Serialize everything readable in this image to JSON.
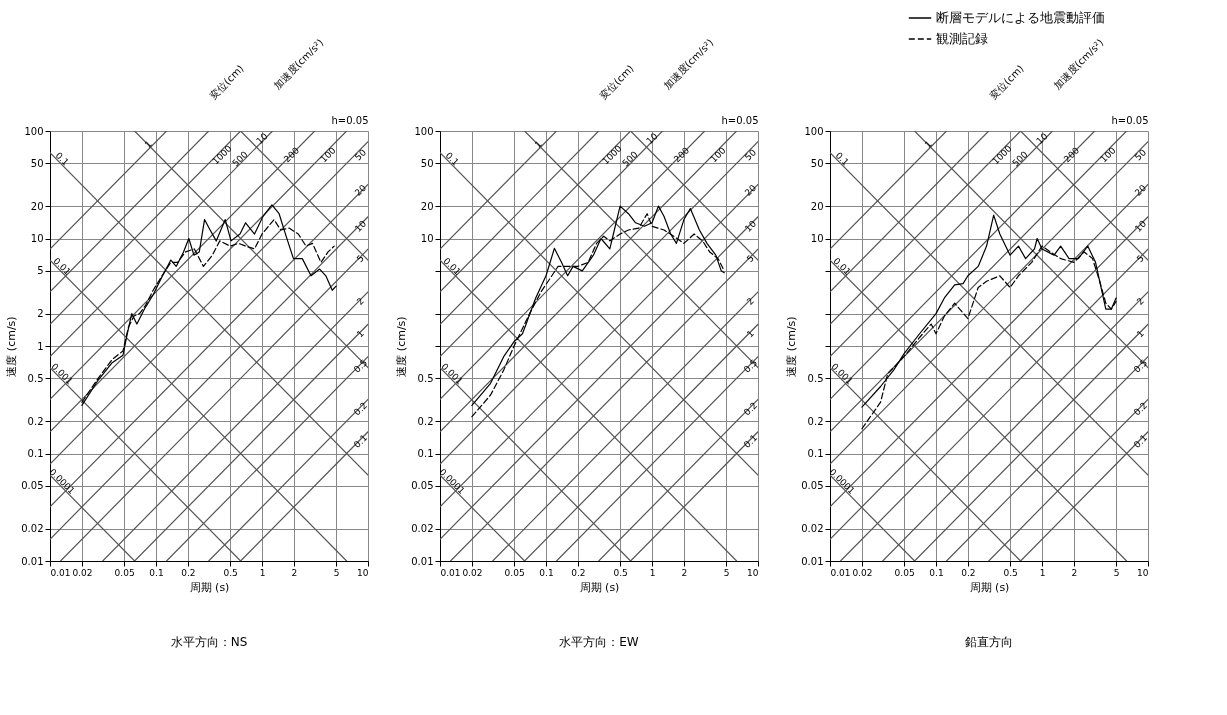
{
  "chart_data": [
    {
      "type": "line",
      "title": "水平方向：NS",
      "xlabel": "周期 (s)",
      "ylabel": "速度 (cm/s)",
      "log": "xy",
      "grid": true,
      "xlim": [
        0.01,
        10
      ],
      "ylim": [
        0.01,
        100
      ],
      "xticks": [
        0.01,
        0.02,
        0.05,
        0.1,
        0.2,
        0.5,
        1,
        2,
        5,
        10
      ],
      "yticks": [
        0.01,
        0.02,
        0.05,
        0.1,
        0.2,
        0.5,
        1,
        2,
        5,
        10,
        20,
        50,
        100
      ],
      "annotations": [
        "変位(cm)",
        "加速度(cm/s²)",
        "h=0.05",
        {
          "text": "0.1",
          "x": 0.013,
          "y": 55
        },
        {
          "text": "0.01",
          "x": 0.013,
          "y": 5.5
        },
        {
          "text": "0.001",
          "x": 0.013,
          "y": 0.55
        },
        {
          "text": "0.0001",
          "x": 0.013,
          "y": 0.055
        },
        {
          "text": "1",
          "x": 0.085,
          "y": 75
        },
        {
          "text": "1000",
          "x": 0.42,
          "y": 60
        },
        {
          "text": "500",
          "x": 0.62,
          "y": 55
        },
        {
          "text": "10",
          "x": 1.0,
          "y": 85
        },
        {
          "text": "200",
          "x": 1.9,
          "y": 60
        },
        {
          "text": "100",
          "x": 4.2,
          "y": 60
        },
        {
          "text": "50",
          "x": 8.5,
          "y": 60
        },
        {
          "text": "20",
          "x": 8.5,
          "y": 28
        },
        {
          "text": "10",
          "x": 8.5,
          "y": 13
        },
        {
          "text": "5",
          "x": 8.5,
          "y": 6.5
        },
        {
          "text": "2",
          "x": 8.5,
          "y": 2.6
        },
        {
          "text": "1",
          "x": 8.5,
          "y": 1.3
        },
        {
          "text": "0.5",
          "x": 8.5,
          "y": 0.65
        },
        {
          "text": "0.2",
          "x": 8.5,
          "y": 0.26
        },
        {
          "text": "0.1",
          "x": 8.5,
          "y": 0.13
        }
      ],
      "series": [
        {
          "color": "#000000",
          "line_style": "solid",
          "x": [
            0.02,
            0.0284,
            0.0386,
            0.0488,
            0.0527,
            0.059,
            0.066,
            0.0776,
            0.094,
            0.114,
            0.138,
            0.155,
            0.181,
            0.204,
            0.228,
            0.256,
            0.287,
            0.324,
            0.37,
            0.45,
            0.51,
            0.62,
            0.7,
            0.85,
            1.02,
            1.24,
            1.45,
            1.7,
            1.98,
            2.4,
            2.9,
            3.5,
            4.0,
            4.6,
            5.0
          ],
          "values": [
            0.28,
            0.48,
            0.7,
            0.82,
            1.2,
            2.0,
            1.6,
            2.2,
            3.0,
            4.4,
            6.3,
            5.5,
            7.4,
            10,
            7.0,
            7.5,
            15,
            12,
            9.5,
            15,
            9.5,
            11,
            14,
            11,
            16,
            20.5,
            17,
            10.3,
            6.5,
            6.5,
            4.5,
            5.2,
            4.5,
            3.3,
            3.6
          ]
        },
        {
          "color": "#000000",
          "line_style": "dashed",
          "x": [
            0.02,
            0.0284,
            0.0386,
            0.0488,
            0.055,
            0.062,
            0.07,
            0.08,
            0.094,
            0.114,
            0.138,
            0.16,
            0.19,
            0.23,
            0.28,
            0.34,
            0.4,
            0.5,
            0.6,
            0.7,
            0.85,
            1.0,
            1.3,
            1.5,
            1.8,
            2.2,
            2.6,
            3.0,
            3.6,
            4.2,
            4.8
          ],
          "values": [
            0.3,
            0.5,
            0.75,
            0.9,
            1.5,
            1.9,
            2.0,
            2.4,
            3.3,
            4.5,
            6.0,
            6.0,
            7.5,
            8.0,
            5.5,
            7.0,
            9.5,
            8.5,
            9.0,
            8.5,
            8.0,
            11,
            15,
            12,
            12.5,
            11,
            8.5,
            9.0,
            6.0,
            7.5,
            8.5
          ]
        },
        {
          "color": "#555555",
          "line_style": "solid",
          "x": [
            0.01,
            0.06283
          ],
          "values": [
            0.06283,
            0.01
          ]
        },
        {
          "color": "#555555",
          "line_style": "solid",
          "x": [
            0.01,
            0.6283
          ],
          "values": [
            0.6283,
            0.01
          ]
        },
        {
          "color": "#555555",
          "line_style": "solid",
          "x": [
            0.01,
            6.283
          ],
          "values": [
            6.283,
            0.01
          ]
        },
        {
          "color": "#555555",
          "line_style": "solid",
          "x": [
            0.01,
            10
          ],
          "values": [
            62.83,
            0.06283
          ]
        },
        {
          "color": "#555555",
          "line_style": "solid",
          "x": [
            0.06283,
            10
          ],
          "values": [
            100,
            0.6283
          ]
        },
        {
          "color": "#555555",
          "line_style": "solid",
          "x": [
            0.6283,
            10
          ],
          "values": [
            100,
            6.283
          ]
        },
        {
          "color": "#555555",
          "line_style": "solid",
          "x": [
            0.01,
            0.1257
          ],
          "values": [
            7.958,
            100
          ]
        },
        {
          "color": "#555555",
          "line_style": "solid",
          "x": [
            0.01,
            0.3142
          ],
          "values": [
            3.183,
            100
          ]
        },
        {
          "color": "#555555",
          "line_style": "solid",
          "x": [
            0.01,
            0.6283
          ],
          "values": [
            1.592,
            100
          ]
        },
        {
          "color": "#555555",
          "line_style": "solid",
          "x": [
            0.01,
            1.257
          ],
          "values": [
            0.7958,
            100
          ]
        },
        {
          "color": "#555555",
          "line_style": "solid",
          "x": [
            0.01,
            3.142
          ],
          "values": [
            0.3183,
            100
          ]
        },
        {
          "color": "#555555",
          "line_style": "solid",
          "x": [
            0.01,
            6.283
          ],
          "values": [
            0.1592,
            100
          ]
        },
        {
          "color": "#555555",
          "line_style": "solid",
          "x": [
            0.01,
            10
          ],
          "values": [
            0.07958,
            79.58
          ]
        },
        {
          "color": "#555555",
          "line_style": "solid",
          "x": [
            0.01,
            10
          ],
          "values": [
            0.03183,
            31.83
          ]
        },
        {
          "color": "#555555",
          "line_style": "solid",
          "x": [
            0.01,
            10
          ],
          "values": [
            0.01592,
            15.92
          ]
        },
        {
          "color": "#555555",
          "line_style": "solid",
          "x": [
            0.01257,
            10
          ],
          "values": [
            0.01,
            7.958
          ]
        },
        {
          "color": "#555555",
          "line_style": "solid",
          "x": [
            0.03142,
            10
          ],
          "values": [
            0.01,
            3.183
          ]
        },
        {
          "color": "#555555",
          "line_style": "solid",
          "x": [
            0.06283,
            10
          ],
          "values": [
            0.01,
            1.592
          ]
        },
        {
          "color": "#555555",
          "line_style": "solid",
          "x": [
            0.1257,
            10
          ],
          "values": [
            0.01,
            0.7958
          ]
        },
        {
          "color": "#555555",
          "line_style": "solid",
          "x": [
            0.3142,
            10
          ],
          "values": [
            0.01,
            0.3183
          ]
        },
        {
          "color": "#555555",
          "line_style": "solid",
          "x": [
            0.6283,
            10
          ],
          "values": [
            0.01,
            0.1592
          ]
        }
      ]
    },
    {
      "type": "line",
      "title": "水平方向：EW",
      "xlabel": "周期 (s)",
      "ylabel": "速度 (cm/s)",
      "log": "xy",
      "grid": true,
      "xlim": [
        0.01,
        10
      ],
      "ylim": [
        0.01,
        100
      ],
      "xticks": [
        0.01,
        0.02,
        0.05,
        0.1,
        0.2,
        0.5,
        1,
        2,
        5,
        10
      ],
      "yticks": [
        0.01,
        0.02,
        0.05,
        0.1,
        0.2,
        0.5,
        {
          "value": 1,
          "label": null
        },
        {
          "value": 2,
          "label": null
        },
        {
          "value": 5,
          "label": null
        },
        10,
        20,
        50,
        100
      ],
      "annotations": [
        "変位(cm)",
        "加速度(cm/s²)",
        "h=0.05",
        {
          "text": "0.1",
          "x": 0.013,
          "y": 55
        },
        {
          "text": "0.01",
          "x": 0.013,
          "y": 5.5
        },
        {
          "text": "0.001",
          "x": 0.013,
          "y": 0.55
        },
        {
          "text": "0.0001",
          "x": 0.013,
          "y": 0.055
        },
        {
          "text": "1",
          "x": 0.085,
          "y": 75
        },
        {
          "text": "1000",
          "x": 0.42,
          "y": 60
        },
        {
          "text": "500",
          "x": 0.62,
          "y": 55
        },
        {
          "text": "10",
          "x": 1.0,
          "y": 85
        },
        {
          "text": "200",
          "x": 1.9,
          "y": 60
        },
        {
          "text": "100",
          "x": 4.2,
          "y": 60
        },
        {
          "text": "50",
          "x": 8.5,
          "y": 60
        },
        {
          "text": "20",
          "x": 8.5,
          "y": 28
        },
        {
          "text": "10",
          "x": 8.5,
          "y": 13
        },
        {
          "text": "5",
          "x": 8.5,
          "y": 6.5
        },
        {
          "text": "2",
          "x": 8.5,
          "y": 2.6
        },
        {
          "text": "1",
          "x": 8.5,
          "y": 1.3
        },
        {
          "text": "0.5",
          "x": 8.5,
          "y": 0.65
        },
        {
          "text": "0.2",
          "x": 8.5,
          "y": 0.26
        },
        {
          "text": "0.1",
          "x": 8.5,
          "y": 0.13
        }
      ],
      "series": [
        {
          "color": "#000000",
          "line_style": "solid",
          "x": [
            0.02,
            0.03,
            0.04,
            0.05,
            0.06,
            0.08,
            0.1,
            0.12,
            0.14,
            0.16,
            0.18,
            0.22,
            0.28,
            0.33,
            0.4,
            0.45,
            0.5,
            0.6,
            0.7,
            0.85,
            1.0,
            1.15,
            1.3,
            1.5,
            1.7,
            2.0,
            2.3,
            2.8,
            3.3,
            4.0,
            4.5,
            4.8
          ],
          "values": [
            0.28,
            0.45,
            0.8,
            1.1,
            1.3,
            2.8,
            4.5,
            8.1,
            6.0,
            4.5,
            5.5,
            5.0,
            7.0,
            10,
            8.0,
            13,
            20,
            17,
            14,
            13,
            14,
            20,
            16,
            11,
            9.0,
            15,
            19,
            12,
            9.0,
            7.0,
            5.0,
            4.8
          ]
        },
        {
          "color": "#000000",
          "line_style": "dashed",
          "x": [
            0.02,
            0.03,
            0.04,
            0.05,
            0.07,
            0.09,
            0.11,
            0.13,
            0.16,
            0.2,
            0.25,
            0.3,
            0.35,
            0.4,
            0.5,
            0.6,
            0.75,
            0.9,
            1.0,
            1.3,
            1.6,
            2.0,
            2.5,
            3.0,
            3.5,
            4.2,
            4.8
          ],
          "values": [
            0.22,
            0.35,
            0.6,
            1.0,
            2.0,
            3.2,
            4.3,
            5.5,
            5.5,
            5.5,
            6.0,
            9.0,
            10.5,
            9.5,
            11,
            12,
            12.5,
            17,
            13,
            12,
            10.5,
            9.0,
            11,
            9.5,
            7.5,
            6.5,
            5.0
          ]
        },
        {
          "color": "#555555",
          "line_style": "solid",
          "x": [
            0.01,
            0.06283
          ],
          "values": [
            0.06283,
            0.01
          ]
        },
        {
          "color": "#555555",
          "line_style": "solid",
          "x": [
            0.01,
            0.6283
          ],
          "values": [
            0.6283,
            0.01
          ]
        },
        {
          "color": "#555555",
          "line_style": "solid",
          "x": [
            0.01,
            6.283
          ],
          "values": [
            6.283,
            0.01
          ]
        },
        {
          "color": "#555555",
          "line_style": "solid",
          "x": [
            0.01,
            10
          ],
          "values": [
            62.83,
            0.06283
          ]
        },
        {
          "color": "#555555",
          "line_style": "solid",
          "x": [
            0.06283,
            10
          ],
          "values": [
            100,
            0.6283
          ]
        },
        {
          "color": "#555555",
          "line_style": "solid",
          "x": [
            0.6283,
            10
          ],
          "values": [
            100,
            6.283
          ]
        },
        {
          "color": "#555555",
          "line_style": "solid",
          "x": [
            0.01,
            0.1257
          ],
          "values": [
            7.958,
            100
          ]
        },
        {
          "color": "#555555",
          "line_style": "solid",
          "x": [
            0.01,
            0.3142
          ],
          "values": [
            3.183,
            100
          ]
        },
        {
          "color": "#555555",
          "line_style": "solid",
          "x": [
            0.01,
            0.6283
          ],
          "values": [
            1.592,
            100
          ]
        },
        {
          "color": "#555555",
          "line_style": "solid",
          "x": [
            0.01,
            1.257
          ],
          "values": [
            0.7958,
            100
          ]
        },
        {
          "color": "#555555",
          "line_style": "solid",
          "x": [
            0.01,
            3.142
          ],
          "values": [
            0.3183,
            100
          ]
        },
        {
          "color": "#555555",
          "line_style": "solid",
          "x": [
            0.01,
            6.283
          ],
          "values": [
            0.1592,
            100
          ]
        },
        {
          "color": "#555555",
          "line_style": "solid",
          "x": [
            0.01,
            10
          ],
          "values": [
            0.07958,
            79.58
          ]
        },
        {
          "color": "#555555",
          "line_style": "solid",
          "x": [
            0.01,
            10
          ],
          "values": [
            0.03183,
            31.83
          ]
        },
        {
          "color": "#555555",
          "line_style": "solid",
          "x": [
            0.01,
            10
          ],
          "values": [
            0.01592,
            15.92
          ]
        },
        {
          "color": "#555555",
          "line_style": "solid",
          "x": [
            0.01257,
            10
          ],
          "values": [
            0.01,
            7.958
          ]
        },
        {
          "color": "#555555",
          "line_style": "solid",
          "x": [
            0.03142,
            10
          ],
          "values": [
            0.01,
            3.183
          ]
        },
        {
          "color": "#555555",
          "line_style": "solid",
          "x": [
            0.06283,
            10
          ],
          "values": [
            0.01,
            1.592
          ]
        },
        {
          "color": "#555555",
          "line_style": "solid",
          "x": [
            0.1257,
            10
          ],
          "values": [
            0.01,
            0.7958
          ]
        },
        {
          "color": "#555555",
          "line_style": "solid",
          "x": [
            0.3142,
            10
          ],
          "values": [
            0.01,
            0.3183
          ]
        },
        {
          "color": "#555555",
          "line_style": "solid",
          "x": [
            0.6283,
            10
          ],
          "values": [
            0.01,
            0.1592
          ]
        }
      ]
    },
    {
      "type": "line",
      "title": "鉛直方向",
      "xlabel": "周期 (s)",
      "ylabel": "速度 (cm/s)",
      "log": "xy",
      "grid": true,
      "legend": "top right",
      "xlim": [
        0.01,
        10
      ],
      "ylim": [
        0.01,
        100
      ],
      "xticks": [
        0.01,
        0.02,
        0.05,
        0.1,
        0.2,
        0.5,
        1,
        2,
        5,
        10
      ],
      "yticks": [
        0.01,
        0.02,
        0.05,
        0.1,
        0.2,
        0.5,
        {
          "value": 1,
          "label": null
        },
        {
          "value": 2,
          "label": null
        },
        {
          "value": 5,
          "label": null
        },
        10,
        20,
        50,
        100
      ],
      "annotations": [
        "変位(cm)",
        "加速度(cm/s²)",
        "h=0.05",
        {
          "text": "0.1",
          "x": 0.013,
          "y": 55
        },
        {
          "text": "0.01",
          "x": 0.013,
          "y": 5.5
        },
        {
          "text": "0.001",
          "x": 0.013,
          "y": 0.55
        },
        {
          "text": "0.0001",
          "x": 0.013,
          "y": 0.055
        },
        {
          "text": "1",
          "x": 0.085,
          "y": 75
        },
        {
          "text": "1000",
          "x": 0.42,
          "y": 60
        },
        {
          "text": "500",
          "x": 0.62,
          "y": 55
        },
        {
          "text": "10",
          "x": 1.0,
          "y": 85
        },
        {
          "text": "200",
          "x": 1.9,
          "y": 60
        },
        {
          "text": "100",
          "x": 4.2,
          "y": 60
        },
        {
          "text": "50",
          "x": 8.5,
          "y": 60
        },
        {
          "text": "20",
          "x": 8.5,
          "y": 28
        },
        {
          "text": "10",
          "x": 8.5,
          "y": 13
        },
        {
          "text": "5",
          "x": 8.5,
          "y": 6.5
        },
        {
          "text": "2",
          "x": 8.5,
          "y": 2.6
        },
        {
          "text": "1",
          "x": 8.5,
          "y": 1.3
        },
        {
          "text": "0.5",
          "x": 8.5,
          "y": 0.65
        },
        {
          "text": "0.2",
          "x": 8.5,
          "y": 0.26
        },
        {
          "text": "0.1",
          "x": 8.5,
          "y": 0.13
        }
      ],
      "series": [
        {
          "name": "断層モデルによる地震動評価",
          "color": "#000000",
          "line_style": "solid",
          "x": [
            0.02,
            0.03,
            0.04,
            0.05,
            0.07,
            0.1,
            0.12,
            0.15,
            0.18,
            0.2,
            0.25,
            0.3,
            0.35,
            0.4,
            0.5,
            0.6,
            0.7,
            0.85,
            0.9,
            1.0,
            1.3,
            1.5,
            1.8,
            2.2,
            2.7,
            3.2,
            4.0,
            4.5,
            5.0
          ],
          "values": [
            0.27,
            0.42,
            0.6,
            0.85,
            1.3,
            2.0,
            2.8,
            3.7,
            3.8,
            4.5,
            5.5,
            8.5,
            16.5,
            11,
            7.0,
            8.5,
            6.5,
            8.0,
            10,
            8.0,
            7.0,
            8.5,
            6.5,
            6.5,
            8.5,
            6.0,
            2.2,
            2.2,
            2.8
          ]
        },
        {
          "name": "観測記録",
          "color": "#000000",
          "line_style": "dashed",
          "x": [
            0.02,
            0.03,
            0.035,
            0.05,
            0.07,
            0.09,
            0.1,
            0.12,
            0.15,
            0.2,
            0.25,
            0.3,
            0.4,
            0.5,
            0.6,
            0.8,
            1.0,
            1.2,
            1.5,
            2.0,
            2.5,
            3.0,
            3.5,
            4.0,
            4.5,
            5.0
          ],
          "values": [
            0.17,
            0.3,
            0.55,
            0.8,
            1.2,
            1.6,
            1.3,
            1.9,
            2.5,
            1.8,
            3.5,
            4.0,
            4.5,
            3.5,
            4.5,
            6.0,
            8.5,
            7.5,
            6.5,
            6.0,
            7.5,
            6.5,
            4.0,
            2.5,
            2.2,
            2.6
          ]
        },
        {
          "color": "#555555",
          "line_style": "solid",
          "x": [
            0.01,
            0.06283
          ],
          "values": [
            0.06283,
            0.01
          ]
        },
        {
          "color": "#555555",
          "line_style": "solid",
          "x": [
            0.01,
            0.6283
          ],
          "values": [
            0.6283,
            0.01
          ]
        },
        {
          "color": "#555555",
          "line_style": "solid",
          "x": [
            0.01,
            6.283
          ],
          "values": [
            6.283,
            0.01
          ]
        },
        {
          "color": "#555555",
          "line_style": "solid",
          "x": [
            0.01,
            10
          ],
          "values": [
            62.83,
            0.06283
          ]
        },
        {
          "color": "#555555",
          "line_style": "solid",
          "x": [
            0.06283,
            10
          ],
          "values": [
            100,
            0.6283
          ]
        },
        {
          "color": "#555555",
          "line_style": "solid",
          "x": [
            0.6283,
            10
          ],
          "values": [
            100,
            6.283
          ]
        },
        {
          "color": "#555555",
          "line_style": "solid",
          "x": [
            0.01,
            0.1257
          ],
          "values": [
            7.958,
            100
          ]
        },
        {
          "color": "#555555",
          "line_style": "solid",
          "x": [
            0.01,
            0.3142
          ],
          "values": [
            3.183,
            100
          ]
        },
        {
          "color": "#555555",
          "line_style": "solid",
          "x": [
            0.01,
            0.6283
          ],
          "values": [
            1.592,
            100
          ]
        },
        {
          "color": "#555555",
          "line_style": "solid",
          "x": [
            0.01,
            1.257
          ],
          "values": [
            0.7958,
            100
          ]
        },
        {
          "color": "#555555",
          "line_style": "solid",
          "x": [
            0.01,
            3.142
          ],
          "values": [
            0.3183,
            100
          ]
        },
        {
          "color": "#555555",
          "line_style": "solid",
          "x": [
            0.01,
            6.283
          ],
          "values": [
            0.1592,
            100
          ]
        },
        {
          "color": "#555555",
          "line_style": "solid",
          "x": [
            0.01,
            10
          ],
          "values": [
            0.07958,
            79.58
          ]
        },
        {
          "color": "#555555",
          "line_style": "solid",
          "x": [
            0.01,
            10
          ],
          "values": [
            0.03183,
            31.83
          ]
        },
        {
          "color": "#555555",
          "line_style": "solid",
          "x": [
            0.01,
            10
          ],
          "values": [
            0.01592,
            15.92
          ]
        },
        {
          "color": "#555555",
          "line_style": "solid",
          "x": [
            0.01257,
            10
          ],
          "values": [
            0.01,
            7.958
          ]
        },
        {
          "color": "#555555",
          "line_style": "solid",
          "x": [
            0.03142,
            10
          ],
          "values": [
            0.01,
            3.183
          ]
        },
        {
          "color": "#555555",
          "line_style": "solid",
          "x": [
            0.06283,
            10
          ],
          "values": [
            0.01,
            1.592
          ]
        },
        {
          "color": "#555555",
          "line_style": "solid",
          "x": [
            0.1257,
            10
          ],
          "values": [
            0.01,
            0.7958
          ]
        },
        {
          "color": "#555555",
          "line_style": "solid",
          "x": [
            0.3142,
            10
          ],
          "values": [
            0.01,
            0.3183
          ]
        },
        {
          "color": "#555555",
          "line_style": "solid",
          "x": [
            0.6283,
            10
          ],
          "values": [
            0.01,
            0.1592
          ]
        }
      ]
    }
  ]
}
